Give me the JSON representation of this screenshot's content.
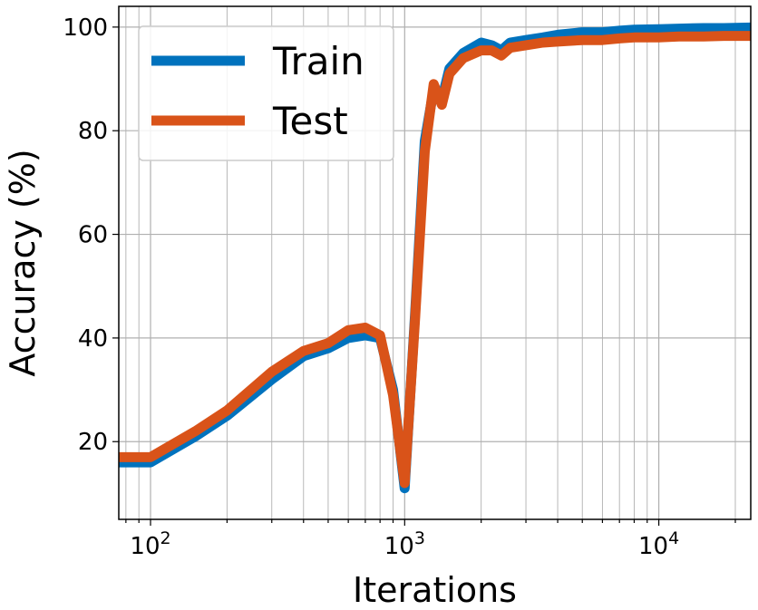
{
  "chart_data": {
    "type": "line",
    "title": "",
    "xlabel": "Iterations",
    "ylabel": "Accuracy (%)",
    "x_scale": "log",
    "xlim": [
      75,
      23000
    ],
    "ylim": [
      5,
      104
    ],
    "x_ticks": [
      {
        "value": 100,
        "base": "10",
        "exp": "2"
      },
      {
        "value": 1000,
        "base": "10",
        "exp": "3"
      },
      {
        "value": 10000,
        "base": "10",
        "exp": "4"
      }
    ],
    "y_ticks": [
      "20",
      "40",
      "60",
      "80",
      "100"
    ],
    "grid": true,
    "legend_position": "top-left",
    "series": [
      {
        "name": "Train",
        "color": "#0072bd",
        "x": [
          75,
          100,
          150,
          200,
          300,
          400,
          500,
          600,
          700,
          800,
          900,
          1000,
          1100,
          1200,
          1300,
          1400,
          1500,
          1700,
          2000,
          2200,
          2400,
          2600,
          3000,
          3500,
          4000,
          5000,
          6000,
          7000,
          8000,
          10000,
          12000,
          15000,
          18000,
          23000
        ],
        "y": [
          16,
          16,
          21,
          25,
          32,
          36.5,
          38,
          40,
          40.5,
          40,
          30,
          11,
          45,
          78,
          88,
          86,
          92,
          95,
          97,
          96.5,
          95.5,
          97,
          97.5,
          98,
          98.5,
          99,
          99,
          99.3,
          99.5,
          99.6,
          99.7,
          99.8,
          99.8,
          99.9
        ]
      },
      {
        "name": "Test",
        "color": "#d95319",
        "x": [
          75,
          100,
          150,
          200,
          300,
          400,
          500,
          600,
          700,
          800,
          900,
          1000,
          1100,
          1200,
          1300,
          1400,
          1500,
          1700,
          2000,
          2200,
          2400,
          2600,
          3000,
          3500,
          4000,
          5000,
          6000,
          7000,
          8000,
          10000,
          12000,
          15000,
          18000,
          23000
        ],
        "y": [
          17,
          17,
          22,
          26,
          33.5,
          37.5,
          39,
          41.5,
          42,
          40.5,
          29,
          12,
          44,
          76,
          89,
          85,
          91,
          94,
          95.5,
          95.5,
          94.5,
          96,
          96.5,
          97,
          97.2,
          97.5,
          97.5,
          97.8,
          98,
          98,
          98.2,
          98.2,
          98.3,
          98.3
        ]
      }
    ]
  }
}
